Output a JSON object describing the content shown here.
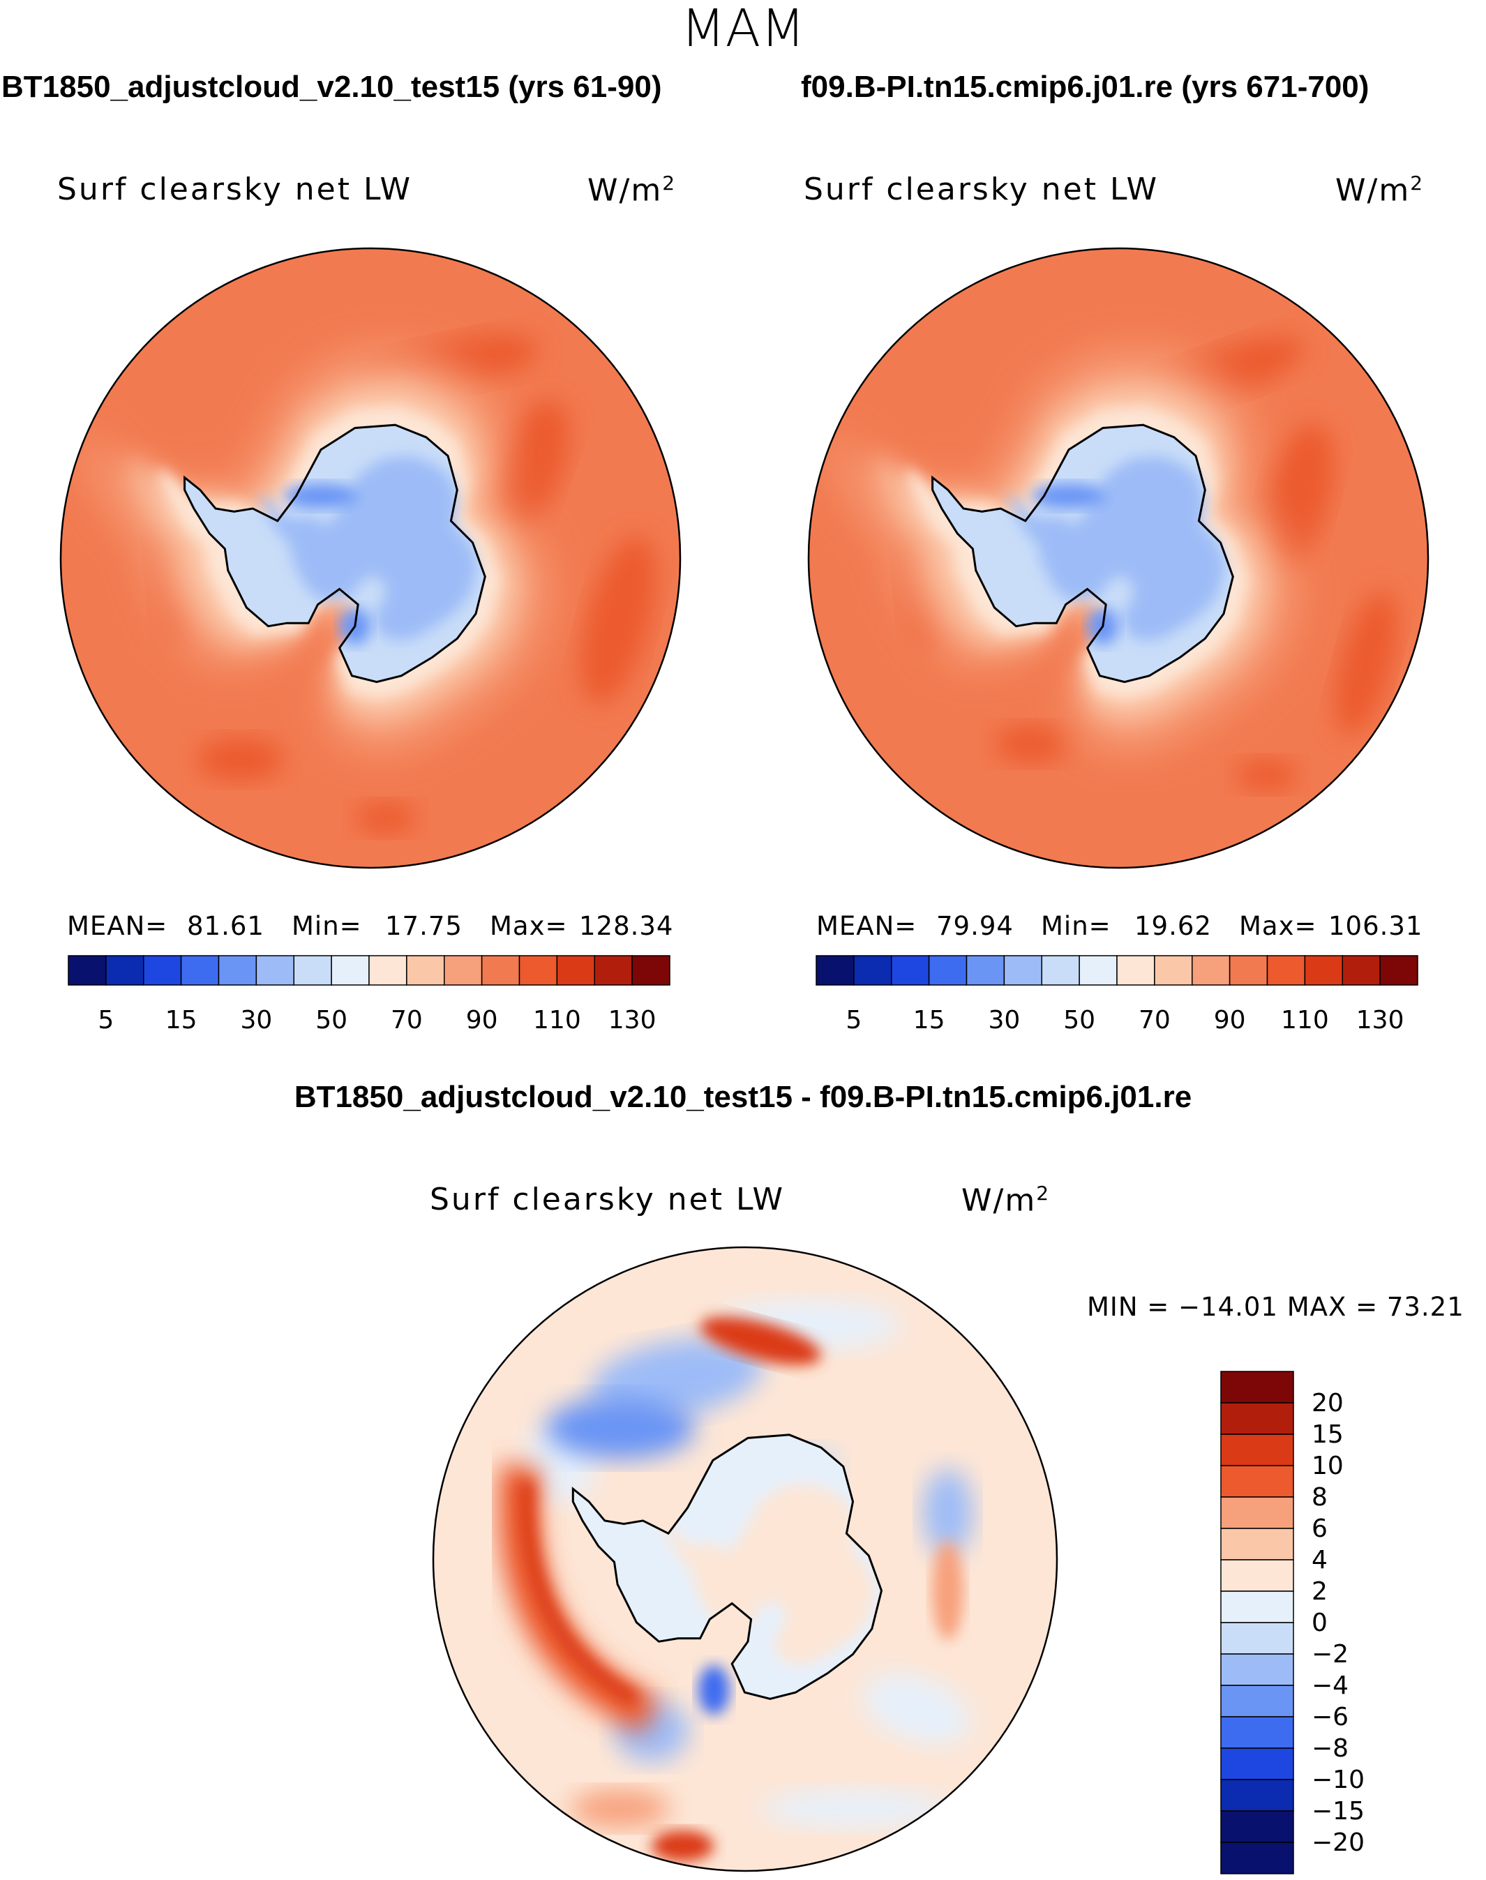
{
  "figure": {
    "season": "MAM",
    "diff_title": "BT1850_adjustcloud_v2.10_test15 - f09.B-PI.tn15.cmip6.j01.re"
  },
  "panels": [
    {
      "run_title": "BT1850_adjustcloud_v2.10_test15 (yrs 61-90)",
      "variable": "Surf clearsky net LW",
      "units": "W/m",
      "units_exp": "2",
      "mean_label": "MEAN=",
      "mean": "81.61",
      "min_label": "Min=",
      "min": "17.75",
      "max_label": "Max=",
      "max": "128.34"
    },
    {
      "run_title": "f09.B-PI.tn15.cmip6.j01.re (yrs 671-700)",
      "variable": "Surf clearsky net LW",
      "units": "W/m",
      "units_exp": "2",
      "mean_label": "MEAN=",
      "mean": "79.94",
      "min_label": "Min=",
      "min": "19.62",
      "max_label": "Max=",
      "max": "106.31"
    }
  ],
  "diff_panel": {
    "variable": "Surf clearsky net LW",
    "units": "W/m",
    "units_exp": "2",
    "minmax": "MIN = −14.01  MAX =   73.21"
  },
  "chart_data": [
    {
      "type": "heatmap",
      "projection": "south-polar-stereographic",
      "title": "BT1850_adjustcloud_v2.10_test15 (yrs 61-90)",
      "field": "Surf clearsky net LW",
      "units": "W/m2",
      "stats": {
        "mean": 81.61,
        "min": 17.75,
        "max": 128.34
      },
      "colorbar": {
        "orientation": "horizontal",
        "tick_labels": [
          "5",
          "15",
          "30",
          "50",
          "70",
          "90",
          "110",
          "130"
        ],
        "colors": [
          "#08116e",
          "#0b2bb0",
          "#1e46e0",
          "#3e6cf0",
          "#6b95f5",
          "#9dbcf7",
          "#c9ddf8",
          "#e6f0fb",
          "#fde6d6",
          "#fbc7a9",
          "#f7a07c",
          "#f27a50",
          "#ec5a2e",
          "#db3a16",
          "#b21e0c",
          "#7d0707"
        ]
      }
    },
    {
      "type": "heatmap",
      "projection": "south-polar-stereographic",
      "title": "f09.B-PI.tn15.cmip6.j01.re (yrs 671-700)",
      "field": "Surf clearsky net LW",
      "units": "W/m2",
      "stats": {
        "mean": 79.94,
        "min": 19.62,
        "max": 106.31
      },
      "colorbar": {
        "orientation": "horizontal",
        "tick_labels": [
          "5",
          "15",
          "30",
          "50",
          "70",
          "90",
          "110",
          "130"
        ],
        "colors": [
          "#08116e",
          "#0b2bb0",
          "#1e46e0",
          "#3e6cf0",
          "#6b95f5",
          "#9dbcf7",
          "#c9ddf8",
          "#e6f0fb",
          "#fde6d6",
          "#fbc7a9",
          "#f7a07c",
          "#f27a50",
          "#ec5a2e",
          "#db3a16",
          "#b21e0c",
          "#7d0707"
        ]
      }
    },
    {
      "type": "heatmap",
      "projection": "south-polar-stereographic",
      "title": "BT1850_adjustcloud_v2.10_test15 - f09.B-PI.tn15.cmip6.j01.re",
      "field": "Surf clearsky net LW",
      "units": "W/m2",
      "stats": {
        "min": -14.01,
        "max": 73.21
      },
      "colorbar": {
        "orientation": "vertical",
        "tick_labels": [
          "20",
          "15",
          "10",
          "8",
          "6",
          "4",
          "2",
          "0",
          "−2",
          "−4",
          "−6",
          "−8",
          "−10",
          "−15",
          "−20"
        ],
        "colors": [
          "#7d0707",
          "#b21e0c",
          "#db3a16",
          "#ec5a2e",
          "#f7a07c",
          "#fbc7a9",
          "#fde6d6",
          "#e6f0fb",
          "#c9ddf8",
          "#9dbcf7",
          "#6b95f5",
          "#3e6cf0",
          "#1e46e0",
          "#0b2bb0",
          "#08116e",
          "#08116e"
        ]
      }
    }
  ]
}
